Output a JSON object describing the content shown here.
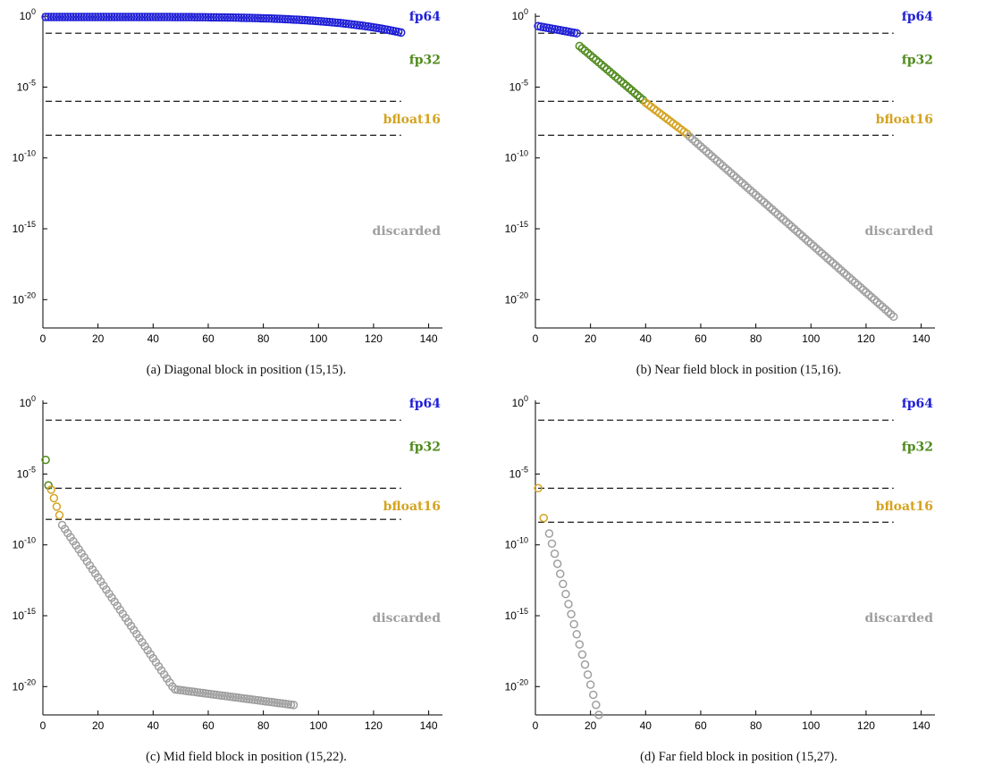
{
  "colors": {
    "fp64": "#1f1fd6",
    "fp32": "#4f8a1c",
    "bfloat16": "#d4a320",
    "discarded": "#9f9f9f",
    "threshold": "#000000"
  },
  "precision_labels": [
    "fp64",
    "fp32",
    "bfloat16",
    "discarded"
  ],
  "x_ticks": [
    0,
    20,
    40,
    60,
    80,
    100,
    120,
    140
  ],
  "y_ticks": [
    {
      "exp": 0,
      "base": "10",
      "sup": "0"
    },
    {
      "exp": -5,
      "base": "10",
      "sup": "-5"
    },
    {
      "exp": -10,
      "base": "10",
      "sup": "-10"
    },
    {
      "exp": -15,
      "base": "10",
      "sup": "-15"
    },
    {
      "exp": -20,
      "base": "10",
      "sup": "-20"
    }
  ],
  "chart_data": [
    {
      "type": "scatter",
      "caption": "(a) Diagonal block in position (15,15).",
      "xlim": [
        0,
        145
      ],
      "ylim_log10": [
        -22,
        0.2
      ],
      "yscale": "log",
      "threshold_lines_log10": [
        -1.2,
        -6,
        -8.4
      ],
      "line_x_end": 130,
      "segments": [
        {
          "class": "fp64",
          "x_start": 1,
          "x_end": 130,
          "log10_start": -0.05,
          "log10_end": -1.15,
          "shape": "flat"
        }
      ]
    },
    {
      "type": "scatter",
      "caption": "(b) Near field block in position (15,16).",
      "xlim": [
        0,
        145
      ],
      "ylim_log10": [
        -22,
        0.2
      ],
      "yscale": "log",
      "threshold_lines_log10": [
        -1.2,
        -6,
        -8.4
      ],
      "line_x_end": 130,
      "segments": [
        {
          "class": "fp64",
          "x_start": 1,
          "x_end": 15,
          "log10_start": -0.7,
          "log10_end": -1.2
        },
        {
          "class": "fp32",
          "x_start": 16,
          "x_end": 39,
          "log10_start": -2.1,
          "log10_end": -5.9
        },
        {
          "class": "bfloat16",
          "x_start": 40,
          "x_end": 55,
          "log10_start": -6.1,
          "log10_end": -8.3
        },
        {
          "class": "discarded",
          "x_start": 56,
          "x_end": 130,
          "log10_start": -8.5,
          "log10_end": -21.2
        }
      ]
    },
    {
      "type": "scatter",
      "caption": "(c) Mid field block in position (15,22).",
      "xlim": [
        0,
        145
      ],
      "ylim_log10": [
        -22,
        0.2
      ],
      "yscale": "log",
      "threshold_lines_log10": [
        -1.2,
        -6,
        -8.2
      ],
      "line_x_end": 130,
      "segments": [
        {
          "class": "fp32",
          "x_start": 1,
          "x_end": 2,
          "log10_start": -4.0,
          "log10_end": -5.8
        },
        {
          "class": "bfloat16",
          "x_start": 3,
          "x_end": 6,
          "log10_start": -6.1,
          "log10_end": -7.9
        },
        {
          "class": "discarded",
          "x_start": 7,
          "x_end": 47,
          "log10_start": -8.6,
          "log10_end": -20.0
        },
        {
          "class": "discarded",
          "x_start": 48,
          "x_end": 91,
          "log10_start": -20.2,
          "log10_end": -21.3
        }
      ]
    },
    {
      "type": "scatter",
      "caption": "(d) Far field block in position (15,27).",
      "xlim": [
        0,
        145
      ],
      "ylim_log10": [
        -22,
        0.2
      ],
      "yscale": "log",
      "threshold_lines_log10": [
        -1.2,
        -6,
        -8.4
      ],
      "line_x_end": 130,
      "segments": [
        {
          "class": "bfloat16",
          "x_start": 1,
          "x_end": 1,
          "log10_start": -6.0,
          "log10_end": -6.0
        },
        {
          "class": "bfloat16",
          "x_start": 3,
          "x_end": 3,
          "log10_start": -8.1,
          "log10_end": -8.1
        },
        {
          "class": "discarded",
          "x_start": 5,
          "x_end": 23,
          "log10_start": -9.2,
          "log10_end": -22.0
        }
      ]
    }
  ]
}
